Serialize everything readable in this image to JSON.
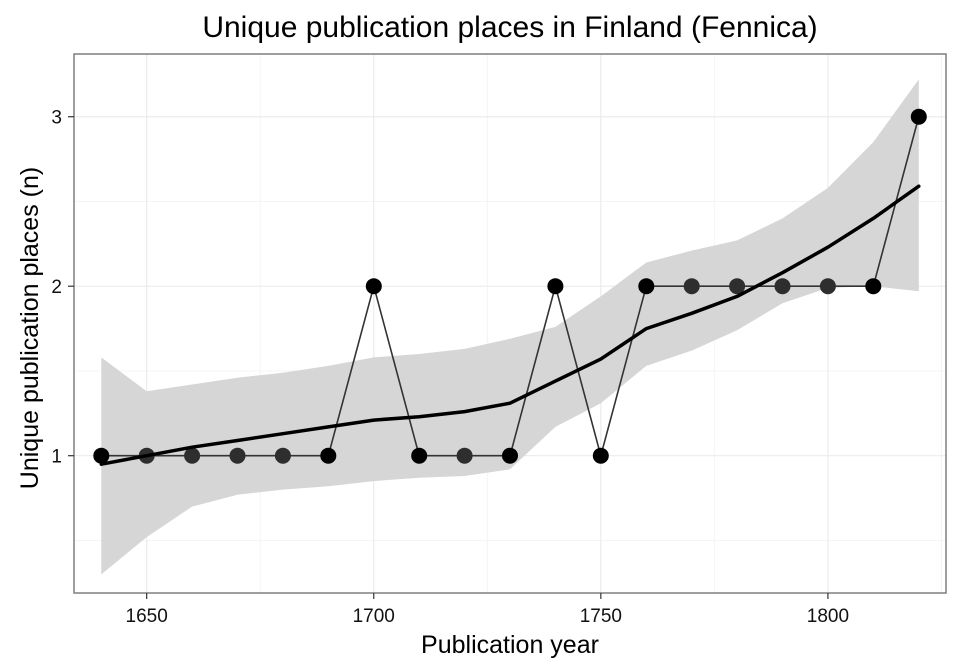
{
  "chart_data": {
    "type": "line",
    "title": "Unique publication places in Finland (Fennica)",
    "xlabel": "Publication year",
    "ylabel": "Unique publication places (n)",
    "xlim": [
      1634,
      1826
    ],
    "ylim": [
      0.19,
      3.37
    ],
    "x_ticks": [
      1650,
      1700,
      1750,
      1800
    ],
    "y_ticks": [
      1,
      2,
      3
    ],
    "grid": true,
    "legend": "none",
    "series": [
      {
        "kind": "points-connected",
        "x": [
          1640,
          1650,
          1660,
          1670,
          1680,
          1690,
          1700,
          1710,
          1720,
          1730,
          1740,
          1750,
          1760,
          1770,
          1780,
          1790,
          1800,
          1810,
          1820
        ],
        "values": [
          1,
          1,
          1,
          1,
          1,
          1,
          2,
          1,
          1,
          1,
          2,
          1,
          2,
          2,
          2,
          2,
          2,
          2,
          3
        ]
      },
      {
        "kind": "smooth-fit",
        "x": [
          1640,
          1650,
          1660,
          1670,
          1680,
          1690,
          1700,
          1710,
          1720,
          1730,
          1740,
          1750,
          1760,
          1770,
          1780,
          1790,
          1800,
          1810,
          1820
        ],
        "values": [
          0.95,
          1.0,
          1.05,
          1.09,
          1.13,
          1.17,
          1.21,
          1.23,
          1.26,
          1.31,
          1.44,
          1.57,
          1.75,
          1.84,
          1.94,
          2.08,
          2.23,
          2.4,
          2.59
        ],
        "ci_lower": [
          0.3,
          0.52,
          0.7,
          0.77,
          0.8,
          0.82,
          0.85,
          0.87,
          0.88,
          0.92,
          1.17,
          1.31,
          1.53,
          1.62,
          1.74,
          1.9,
          1.99,
          2.0,
          1.97
        ],
        "ci_upper": [
          1.58,
          1.38,
          1.42,
          1.46,
          1.49,
          1.53,
          1.58,
          1.6,
          1.63,
          1.69,
          1.76,
          1.94,
          2.14,
          2.21,
          2.27,
          2.4,
          2.58,
          2.85,
          3.22
        ]
      }
    ],
    "colors": {
      "points": "#2e2e2e",
      "point_highlight": "#000000",
      "line": "#333333",
      "smooth": "#000000",
      "ribbon": "#d6d6d6",
      "grid_major": "#ebebeb",
      "grid_minor": "#f4f4f4",
      "panel_border": "#7f7f7f"
    }
  }
}
